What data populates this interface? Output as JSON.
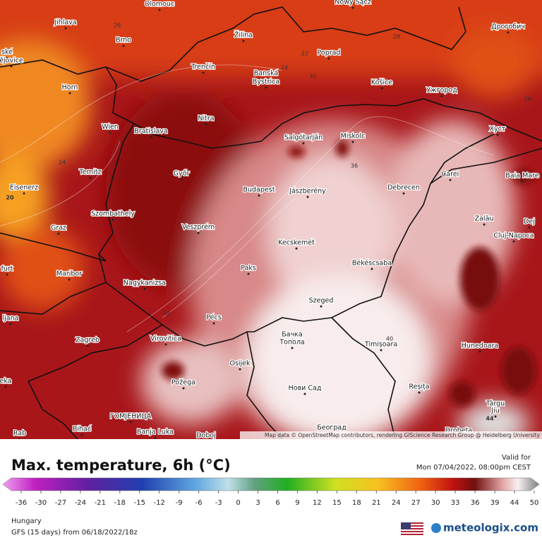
{
  "map": {
    "cities": [
      "Olomouc",
      "Nowy Sącz",
      "Дрогобич",
      "Jihlava",
      "Brno",
      "Žilina",
      "Poprad",
      "Trenčín",
      "Banská",
      "Bystrica",
      "Košice",
      "Ужгород",
      "Horn",
      "Wien",
      "Bratislava",
      "Nitra",
      "Salgótarján",
      "Miskolc",
      "Хуст",
      "Ternitz",
      "Győr",
      "Budapest",
      "Jászberény",
      "Debrecen",
      "Carei",
      "Baia Mare",
      "Eisenerz",
      "Szombathely",
      "Veszprém",
      "Zalău",
      "Graz",
      "Kecskemét",
      "Cluj-Napoca",
      "Dej",
      "Paks",
      "Békéscsaba",
      "Maribor",
      "Nagykanizsa",
      "Szeged",
      "Pécs",
      "Virovitica",
      "Бачка",
      "Топола",
      "Timișoara",
      "Hunedoara",
      "Zagreb",
      "Osijek",
      "Požega",
      "Нови Сад",
      "Reșița",
      "Târgu",
      "Jiu",
      "Bihać",
      "ГОМЈЕНИЦА",
      "Banja Luka",
      "Doboj",
      "Београд",
      "Drobeta",
      "Rab",
      "ljana",
      "furt",
      "ské",
      "ějovice",
      "eka"
    ],
    "contour_labels": [
      26,
      22,
      24,
      28,
      30,
      36,
      34,
      40,
      24,
      20,
      44,
      26
    ],
    "attribution": "Map data © OpenStreetMap contributors, rendering GIScience Research Group @ Heidelberg University"
  },
  "footer": {
    "title": "Max. temperature, 6h (°C)",
    "valid_label": "Valid for",
    "valid_time": "Mon 07/04/2022, 08:00pm CEST",
    "region": "Hungary",
    "model": "GFS (15 days) from 06/18/2022/18z",
    "brand": "meteologix.com"
  },
  "colorbar": {
    "ticks": [
      -36,
      -30,
      -27,
      -24,
      -21,
      -18,
      -15,
      -12,
      -9,
      -6,
      -3,
      0,
      3,
      6,
      9,
      12,
      15,
      18,
      21,
      24,
      27,
      30,
      33,
      36,
      39,
      44,
      50
    ]
  }
}
